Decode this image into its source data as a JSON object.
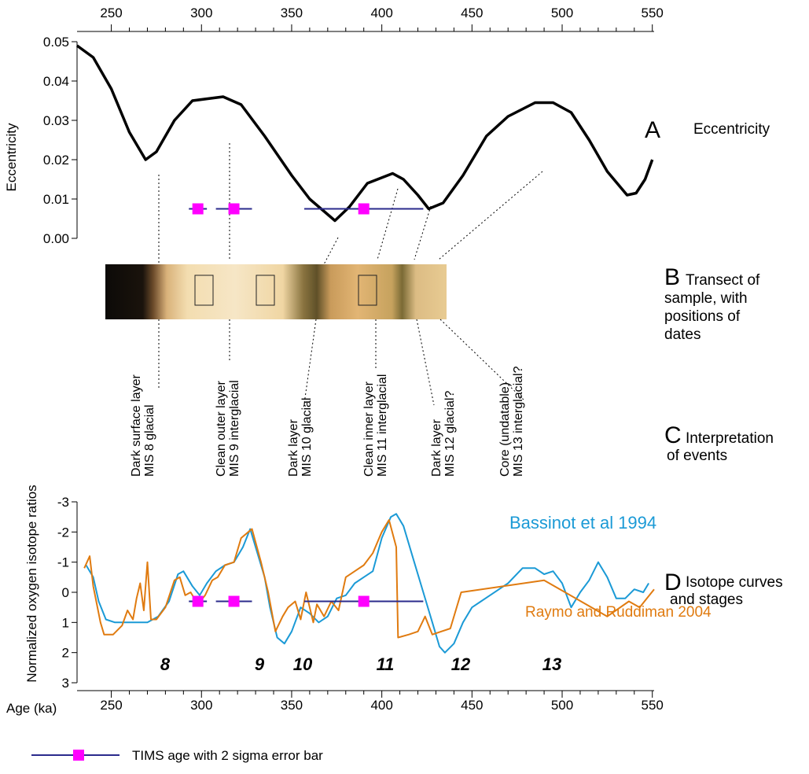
{
  "chart_data": [
    {
      "type": "line",
      "panel": "A",
      "panel_text": [
        "Eccentricity"
      ],
      "ylabel": "Eccentricity",
      "xlim": [
        231,
        551
      ],
      "xticks": [
        250,
        300,
        350,
        400,
        450,
        500,
        550
      ],
      "ylim": [
        0,
        0.05
      ],
      "yticks": [
        {
          "value": 0,
          "label": "0.00"
        },
        {
          "value": 0.01,
          "label": "0.01"
        },
        {
          "value": 0.02,
          "label": "0.02"
        },
        {
          "value": 0.03,
          "label": "0.03"
        },
        {
          "value": 0.04,
          "label": "0.04"
        },
        {
          "value": 0.05,
          "label": "0.05"
        }
      ],
      "series": [
        {
          "color": "#000000",
          "x": [
            231,
            240,
            250,
            260,
            269,
            275,
            285,
            295,
            312,
            322,
            335,
            350,
            360,
            374,
            382,
            392,
            406,
            412,
            420,
            426,
            434,
            445,
            458,
            470,
            485,
            495,
            505,
            515,
            525,
            536,
            541,
            546,
            550
          ],
          "values": [
            0.049,
            0.046,
            0.038,
            0.027,
            0.02,
            0.022,
            0.03,
            0.035,
            0.036,
            0.034,
            0.026,
            0.016,
            0.01,
            0.0045,
            0.008,
            0.014,
            0.0165,
            0.015,
            0.011,
            0.0075,
            0.009,
            0.016,
            0.026,
            0.031,
            0.0345,
            0.0345,
            0.032,
            0.025,
            0.017,
            0.011,
            0.0115,
            0.015,
            0.02
          ]
        }
      ],
      "tims": {
        "color": "#ff00ff",
        "bar_color": "#2b2b8c",
        "ages": [
          298,
          318,
          390
        ],
        "errors": [
          5,
          10,
          33
        ],
        "level": 0.0075
      }
    },
    {
      "type": "line",
      "panel": "D",
      "panel_text": [
        "Isotope curves",
        "and stages"
      ],
      "ylabel": "Normalized oxygen isotope ratios",
      "xlabel": "Age (ka)",
      "xlim": [
        231,
        551
      ],
      "xticks": [
        250,
        300,
        350,
        400,
        450,
        500,
        550
      ],
      "ylim": [
        -3,
        3
      ],
      "inverted": true,
      "yticks": [
        -3,
        -2,
        -1,
        0,
        1,
        2,
        3
      ],
      "stages": [
        "8",
        "9",
        "10",
        "11",
        "12",
        "13"
      ],
      "series": [
        {
          "name": "Bassinot et al 1994",
          "color": "#1b9ad6",
          "x": [
            236,
            240,
            243,
            247,
            252,
            258,
            265,
            270,
            276,
            282,
            287,
            290,
            295,
            299,
            303,
            308,
            313,
            318,
            323,
            327,
            330,
            335,
            338,
            342,
            346,
            350,
            355,
            360,
            365,
            370,
            375,
            380,
            385,
            390,
            395,
            400,
            405,
            408,
            412,
            418,
            423,
            428,
            432,
            435,
            440,
            445,
            450,
            455,
            460,
            470,
            478,
            485,
            490,
            495,
            500,
            505,
            510,
            515,
            520,
            525,
            530,
            535,
            540,
            545,
            548
          ],
          "values": [
            -0.9,
            -0.5,
            0.3,
            0.9,
            1.0,
            1.0,
            1.0,
            1.0,
            0.8,
            0.3,
            -0.6,
            -0.7,
            -0.2,
            0.1,
            -0.3,
            -0.7,
            -0.9,
            -1.0,
            -1.5,
            -2.1,
            -1.5,
            -0.5,
            0.5,
            1.5,
            1.7,
            1.3,
            0.5,
            0.7,
            1.0,
            0.8,
            0.2,
            0.1,
            -0.3,
            -0.5,
            -0.7,
            -1.8,
            -2.5,
            -2.6,
            -2.2,
            -1.0,
            0.0,
            1.0,
            1.8,
            2.0,
            1.7,
            1.0,
            0.5,
            0.3,
            0.1,
            -0.3,
            -0.8,
            -0.8,
            -0.6,
            -0.7,
            -0.3,
            0.5,
            0.0,
            -0.4,
            -1.0,
            -0.5,
            0.2,
            0.2,
            -0.1,
            0.0,
            -0.3
          ]
        },
        {
          "name": "Raymo and Ruddiman 2004",
          "color": "#e07b10",
          "x": [
            235,
            238,
            240,
            244,
            246,
            251,
            256,
            259,
            262,
            264,
            266,
            268,
            270,
            272,
            275,
            280,
            285,
            288,
            291,
            294,
            298,
            302,
            306,
            309,
            313,
            318,
            322,
            326,
            328,
            333,
            337,
            341,
            345,
            348,
            352,
            355,
            358,
            362,
            364,
            368,
            372,
            376,
            380,
            385,
            390,
            395,
            400,
            404,
            408,
            409,
            415,
            420,
            424,
            428,
            433,
            438,
            444,
            490,
            525,
            537,
            543,
            551
          ],
          "values": [
            -0.8,
            -1.2,
            -0.2,
            1.0,
            1.4,
            1.4,
            1.1,
            0.6,
            0.9,
            0.2,
            -0.3,
            0.6,
            -1.0,
            0.9,
            0.9,
            0.5,
            -0.4,
            -0.5,
            0.1,
            0.0,
            0.4,
            0.1,
            -0.4,
            -0.5,
            -0.9,
            -1.0,
            -1.8,
            -2.0,
            -2.1,
            -1.0,
            0.0,
            1.3,
            0.8,
            0.5,
            0.3,
            0.9,
            0.0,
            1.0,
            0.4,
            0.8,
            0.3,
            0.6,
            -0.5,
            -0.7,
            -0.9,
            -1.3,
            -2.0,
            -2.4,
            -1.5,
            1.5,
            1.4,
            1.3,
            0.8,
            1.4,
            1.3,
            1.2,
            0.0,
            -0.4,
            0.8,
            0.3,
            0.5,
            -0.1
          ]
        }
      ],
      "tims": {
        "color": "#ff00ff",
        "bar_color": "#2b2b8c",
        "ages": [
          298,
          318,
          390
        ],
        "errors": [
          5,
          10,
          33
        ],
        "level": 0.3
      }
    }
  ],
  "transect": {
    "panel": "B",
    "text": [
      "Transect of",
      "sample, with",
      "positions of",
      "dates"
    ]
  },
  "interpretation": {
    "panel": "C",
    "text": [
      "Interpretation",
      "of events"
    ],
    "layers": [
      [
        "Dark surface layer",
        "MIS 8 glacial"
      ],
      [
        "Clean outer layer",
        "MIS 9 interglacial"
      ],
      [
        "Dark layer",
        "MIS 10 glacial"
      ],
      [
        "Clean inner layer",
        "MIS 11 interglacial"
      ],
      [
        "Dark layer",
        "MIS 12 glacial?"
      ],
      [
        "Core (undatable)",
        "MIS 13 interglacial?"
      ]
    ]
  },
  "legend": {
    "label": "TIMS age with 2 sigma error bar"
  }
}
